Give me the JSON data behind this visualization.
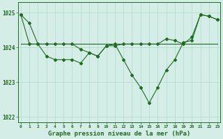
{
  "x": [
    0,
    1,
    2,
    3,
    4,
    5,
    6,
    7,
    8,
    9,
    10,
    11,
    12,
    13,
    14,
    15,
    16,
    17,
    18,
    19,
    20,
    21,
    22,
    23
  ],
  "line1": [
    1024.95,
    1024.7,
    1024.1,
    1023.75,
    1023.65,
    1023.65,
    1023.65,
    1023.55,
    1023.85,
    1023.75,
    1024.05,
    1024.1,
    1023.65,
    1023.2,
    1022.85,
    1022.4,
    1022.85,
    1023.35,
    1023.65,
    1024.15,
    1024.2,
    1024.95,
    1024.9,
    1024.8
  ],
  "line2": [
    1024.1,
    1024.1,
    1024.1,
    1024.1,
    1024.1,
    1024.1,
    1024.1,
    1024.1,
    1024.1,
    1024.1,
    1024.1,
    1024.1,
    1024.1,
    1024.1,
    1024.1,
    1024.1,
    1024.1,
    1024.1,
    1024.1,
    1024.1,
    1024.1,
    1024.1,
    1024.1,
    1024.1
  ],
  "line3": [
    1024.95,
    1024.1,
    1024.1,
    1024.1,
    1024.1,
    1024.1,
    1024.1,
    1023.95,
    1023.85,
    1023.75,
    1024.05,
    1024.05,
    1024.1,
    1024.1,
    1024.1,
    1024.1,
    1024.1,
    1024.25,
    1024.2,
    1024.1,
    1024.3,
    1024.95,
    1024.9,
    1024.8
  ],
  "ylim": [
    1021.85,
    1025.3
  ],
  "yticks": [
    1022,
    1023,
    1024,
    1025
  ],
  "line_color": "#1f6b1f",
  "bg_color": "#d4ede6",
  "grid_color": "#b0d9cc",
  "label_color": "#1f6b1f",
  "xlabel": "Graphe pression niveau de la mer (hPa)"
}
